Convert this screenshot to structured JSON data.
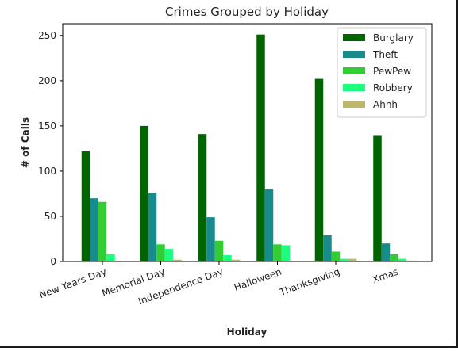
{
  "chart_data": {
    "type": "bar",
    "title": "Crimes Grouped by Holiday",
    "xlabel": "Holiday",
    "ylabel": "# of Calls",
    "categories": [
      "New Years Day",
      "Memorial Day",
      "Independence Day",
      "Halloween",
      "Thanksgiving",
      "Xmas"
    ],
    "yticks": [
      0,
      50,
      100,
      150,
      200,
      250
    ],
    "ylim": [
      0,
      263
    ],
    "legend_position": "top-right",
    "grid": false,
    "series": [
      {
        "name": "Burglary",
        "color": "#006400",
        "values": [
          122,
          150,
          141,
          251,
          202,
          139
        ]
      },
      {
        "name": "Theft",
        "color": "#188c8c",
        "values": [
          70,
          76,
          49,
          80,
          29,
          20
        ]
      },
      {
        "name": "PewPew",
        "color": "#32cd32",
        "values": [
          66,
          19,
          23,
          19,
          11,
          8
        ]
      },
      {
        "name": "Robbery",
        "color": "#1cff7e",
        "values": [
          8,
          14,
          7,
          18,
          3,
          3
        ]
      },
      {
        "name": "Ahhh",
        "color": "#bdb76b",
        "values": [
          0,
          2,
          2,
          0,
          3,
          1
        ]
      }
    ]
  }
}
